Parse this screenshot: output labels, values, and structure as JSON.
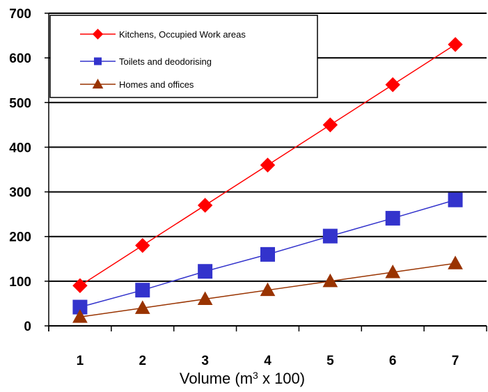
{
  "chart_data": {
    "type": "line",
    "x": [
      1,
      2,
      3,
      4,
      5,
      6,
      7
    ],
    "xlabel_parts": [
      "Volume (m",
      "3",
      " x 100)"
    ],
    "ylabel": "",
    "ylim": [
      0,
      700
    ],
    "yticks": [
      0,
      100,
      200,
      300,
      400,
      500,
      600,
      700
    ],
    "grid": "horizontal",
    "legend_position": "top-left",
    "series": [
      {
        "name": "Kitchens, Occupied Work areas",
        "color": "#ff0000",
        "marker": "diamond",
        "values": [
          90,
          180,
          270,
          360,
          450,
          540,
          630
        ]
      },
      {
        "name": "Toilets and deodorising",
        "color": "#3333cc",
        "marker": "square",
        "values": [
          42,
          80,
          122,
          160,
          201,
          241,
          282
        ]
      },
      {
        "name": "Homes and offices",
        "color": "#993300",
        "marker": "triangle",
        "values": [
          20,
          40,
          60,
          80,
          100,
          120,
          140
        ]
      }
    ]
  }
}
